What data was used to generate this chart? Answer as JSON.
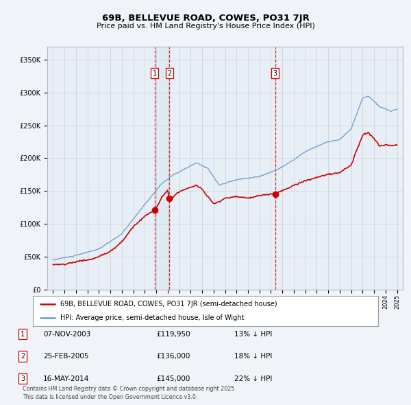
{
  "title": "69B, BELLEVUE ROAD, COWES, PO31 7JR",
  "subtitle": "Price paid vs. HM Land Registry's House Price Index (HPI)",
  "legend_line1": "69B, BELLEVUE ROAD, COWES, PO31 7JR (semi-detached house)",
  "legend_line2": "HPI: Average price, semi-detached house, Isle of Wight",
  "footnote": "Contains HM Land Registry data © Crown copyright and database right 2025.\nThis data is licensed under the Open Government Licence v3.0.",
  "transactions": [
    {
      "label": "1",
      "date": "07-NOV-2003",
      "price": "£119,950",
      "pct": "13% ↓ HPI",
      "x": 2003.85
    },
    {
      "label": "2",
      "date": "25-FEB-2005",
      "price": "£136,000",
      "pct": "18% ↓ HPI",
      "x": 2005.14
    },
    {
      "label": "3",
      "date": "16-MAY-2014",
      "price": "£145,000",
      "pct": "22% ↓ HPI",
      "x": 2014.37
    }
  ],
  "vline_color": "#cc0000",
  "hpi_color": "#6699cc",
  "price_color": "#cc0000",
  "background_color": "#f0f4f8",
  "plot_bg_color": "#e8eef5",
  "ylim": [
    0,
    370000
  ],
  "yticks": [
    0,
    50000,
    100000,
    150000,
    200000,
    250000,
    300000,
    350000
  ],
  "xlim": [
    1994.5,
    2025.5
  ]
}
